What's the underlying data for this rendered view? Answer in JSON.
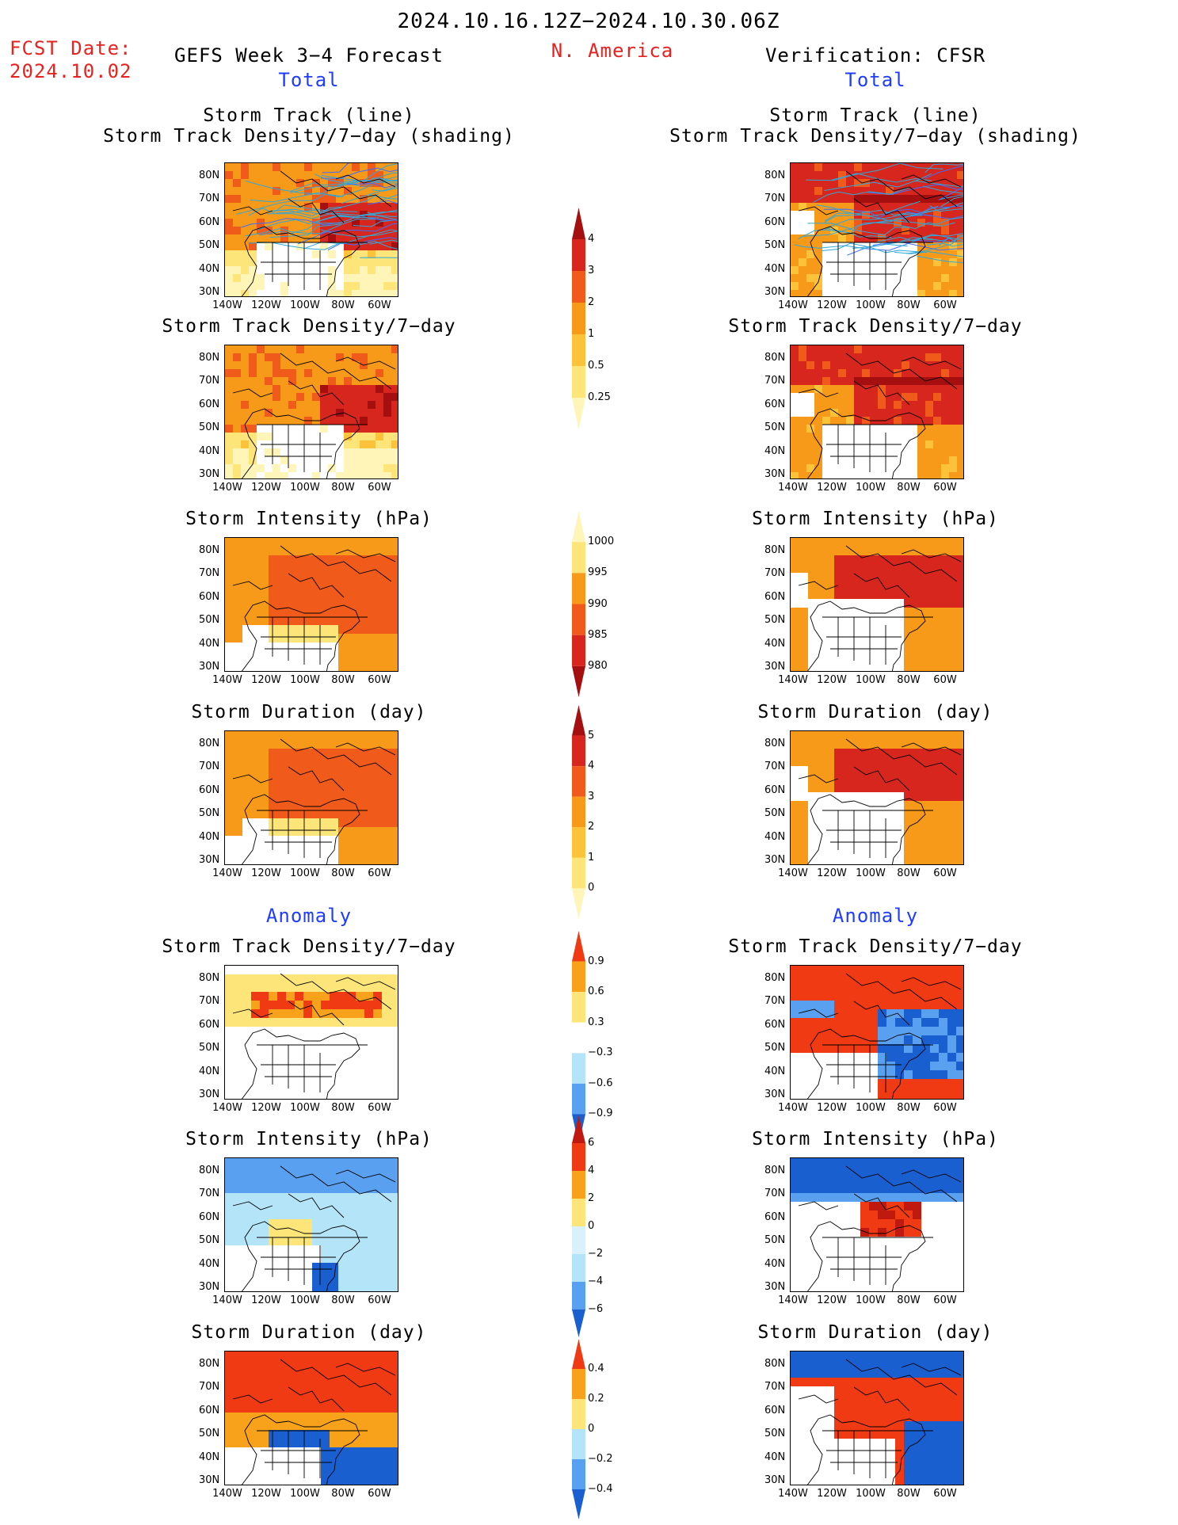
{
  "header": {
    "date_range": "2024.10.16.12Z−2024.10.30.06Z",
    "fcst_label": "FCST Date:",
    "fcst_date": "2024.10.02",
    "forecast_title": "GEFS Week 3−4 Forecast",
    "region": "N. America",
    "verification": "Verification: CFSR"
  },
  "sections": {
    "total_left": "Total",
    "total_right": "Total",
    "anomaly_left": "Anomaly",
    "anomaly_right": "Anomaly"
  },
  "axes": {
    "lat_ticks": [
      "80N",
      "70N",
      "60N",
      "50N",
      "40N",
      "30N"
    ],
    "lon_ticks": [
      "140W",
      "120W",
      "100W",
      "80W",
      "60W"
    ]
  },
  "rows": [
    {
      "title1": "Storm Track (line)",
      "title2": "Storm Track Density/7−day (shading)",
      "field": "track",
      "scheme": "warm"
    },
    {
      "title1": "Storm Track Density/7−day",
      "title2": "",
      "field": "density",
      "scheme": "warm"
    },
    {
      "title1": "Storm Intensity (hPa)",
      "title2": "",
      "field": "intensity",
      "scheme": "warm"
    },
    {
      "title1": "Storm Duration (day)",
      "title2": "",
      "field": "duration",
      "scheme": "warm"
    },
    {
      "title1": "Storm Track Density/7−day",
      "title2": "",
      "field": "density_anom",
      "scheme": "div"
    },
    {
      "title1": "Storm Intensity (hPa)",
      "title2": "",
      "field": "intensity_anom",
      "scheme": "div"
    },
    {
      "title1": "Storm Duration (day)",
      "title2": "",
      "field": "duration_anom",
      "scheme": "div"
    }
  ],
  "colorbars": [
    {
      "name": "density-total",
      "labels": [
        "4",
        "3",
        "2",
        "1",
        "0.5",
        "0.25"
      ],
      "colors": [
        "#a50f0f",
        "#d7261e",
        "#f05a1a",
        "#f79a1a",
        "#fcc33a",
        "#fde57a",
        "#fff5b8"
      ]
    },
    {
      "name": "intensity-total",
      "labels": [
        "1000",
        "995",
        "990",
        "985",
        "980"
      ],
      "colors": [
        "#fff5b8",
        "#fde57a",
        "#f79a1a",
        "#f05a1a",
        "#d7261e",
        "#a50f0f"
      ]
    },
    {
      "name": "duration-total",
      "labels": [
        "5",
        "4",
        "3",
        "2",
        "1",
        "0"
      ],
      "colors": [
        "#a50f0f",
        "#d7261e",
        "#f05a1a",
        "#f79a1a",
        "#fcc33a",
        "#fde57a",
        "#fff5b8"
      ]
    },
    {
      "name": "density-anom",
      "labels": [
        "0.9",
        "0.6",
        "0.3",
        "−0.3",
        "−0.6",
        "−0.9"
      ],
      "colors": [
        "#f03a14",
        "#f8a21c",
        "#fde57a",
        "#ffffff",
        "#b4e4f8",
        "#5aa0f0",
        "#1a5fd0"
      ]
    },
    {
      "name": "intensity-anom",
      "labels": [
        "6",
        "4",
        "2",
        "0",
        "−2",
        "−4",
        "−6"
      ],
      "colors": [
        "#c0190f",
        "#f03a14",
        "#f8a21c",
        "#fde57a",
        "#d8f1fb",
        "#b4e4f8",
        "#5aa0f0",
        "#1a5fd0"
      ]
    },
    {
      "name": "duration-anom",
      "labels": [
        "0.4",
        "0.2",
        "0",
        "−0.2",
        "−0.4"
      ],
      "colors": [
        "#f03a14",
        "#f8a21c",
        "#fde57a",
        "#b4e4f8",
        "#5aa0f0",
        "#1a5fd0"
      ]
    }
  ]
}
